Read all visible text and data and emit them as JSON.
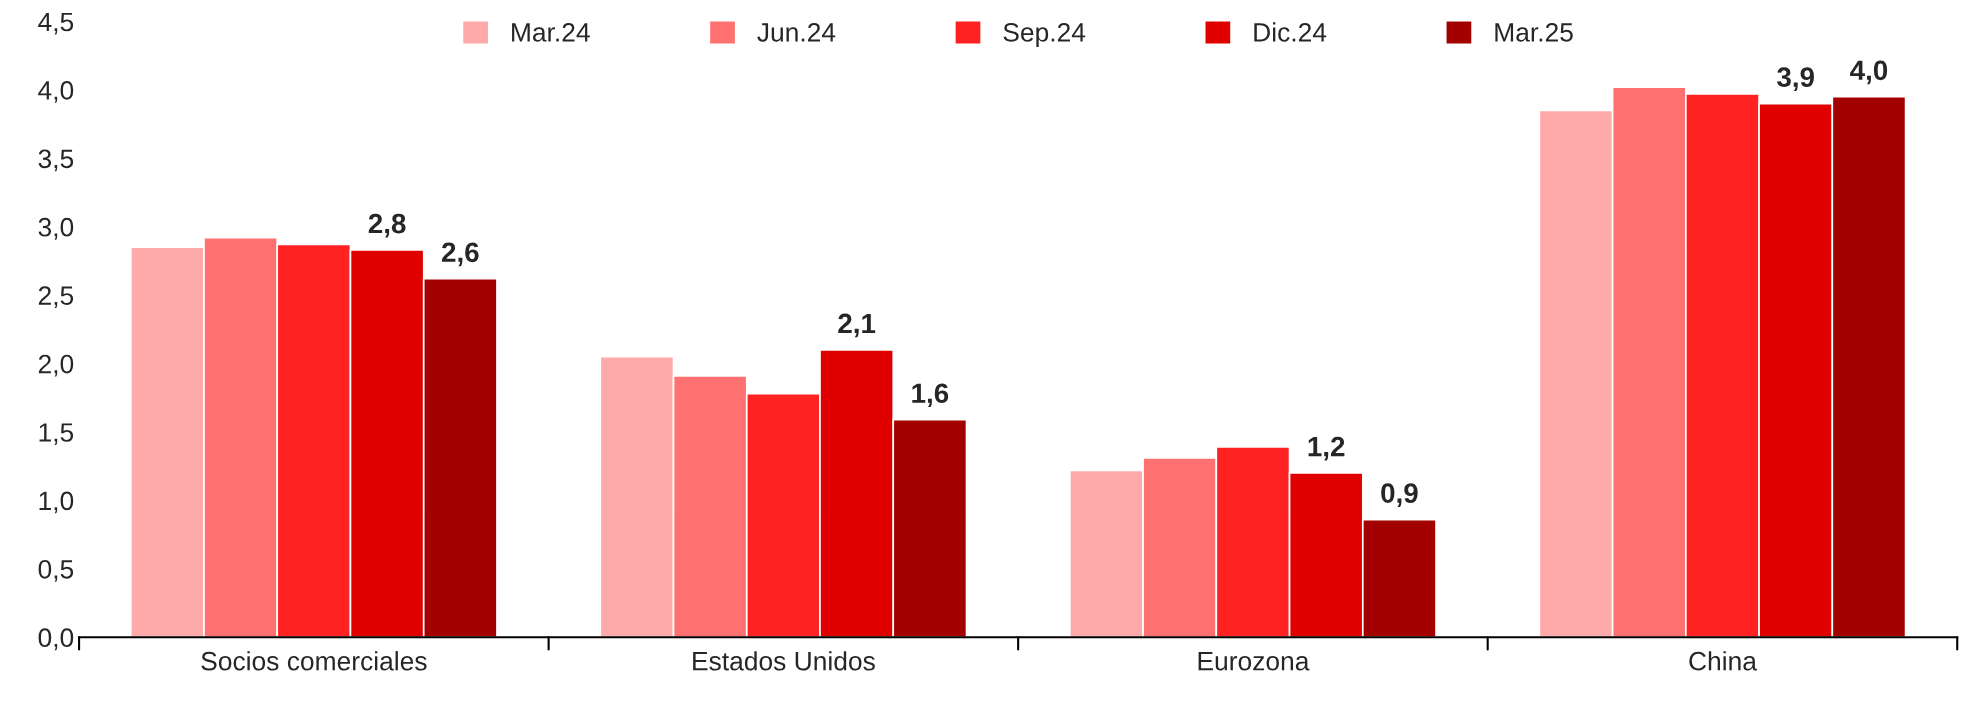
{
  "chart_data": {
    "type": "bar",
    "categories": [
      "Socios comerciales",
      "Estados Unidos",
      "Eurozona",
      "China"
    ],
    "series": [
      {
        "name": "Mar.24",
        "color": "#ffaaaa",
        "values": [
          2.85,
          2.05,
          1.22,
          3.85
        ]
      },
      {
        "name": "Jun.24",
        "color": "#ff7070",
        "values": [
          2.92,
          1.91,
          1.31,
          4.02
        ]
      },
      {
        "name": "Sep.24",
        "color": "#ff2222",
        "values": [
          2.87,
          1.78,
          1.39,
          3.97
        ]
      },
      {
        "name": "Dic.24",
        "color": "#e00000",
        "values": [
          2.83,
          2.1,
          1.2,
          3.9
        ],
        "value_labels": [
          "2,8",
          "2,1",
          "1,2",
          "3,9"
        ]
      },
      {
        "name": "Mar.25",
        "color": "#a30000",
        "values": [
          2.62,
          1.59,
          0.86,
          3.95
        ],
        "value_labels": [
          "2,6",
          "1,6",
          "0,9",
          "4,0"
        ]
      }
    ],
    "ylim": [
      0,
      4.5
    ],
    "yticks": [
      {
        "value": 0,
        "label": "0,0"
      },
      {
        "value": 0.5,
        "label": "0,5"
      },
      {
        "value": 1,
        "label": "1,0"
      },
      {
        "value": 1.5,
        "label": "1,5"
      },
      {
        "value": 2,
        "label": "2,0"
      },
      {
        "value": 2.5,
        "label": "2,5"
      },
      {
        "value": 3,
        "label": "3,0"
      },
      {
        "value": 3.5,
        "label": "3,5"
      },
      {
        "value": 4,
        "label": "4,0"
      },
      {
        "value": 4.5,
        "label": "4,5"
      }
    ],
    "grid": false,
    "legend": "top"
  }
}
